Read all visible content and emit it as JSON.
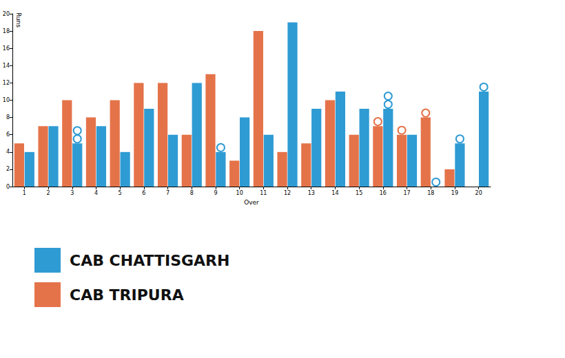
{
  "chart_data": {
    "type": "bar",
    "xlabel": "Over",
    "ylabel": "Runs",
    "categories": [
      "1",
      "2",
      "3",
      "4",
      "5",
      "6",
      "7",
      "8",
      "9",
      "10",
      "11",
      "12",
      "13",
      "14",
      "15",
      "16",
      "17",
      "18",
      "19",
      "20"
    ],
    "series": [
      {
        "name": "CAB CHATTISGARH",
        "color": "#2f9bd3",
        "values": [
          4,
          7,
          5,
          7,
          4,
          9,
          6,
          12,
          4,
          8,
          6,
          19,
          9,
          11,
          9,
          9,
          6,
          0,
          5,
          11
        ],
        "wickets": [
          0,
          0,
          2,
          0,
          0,
          0,
          0,
          0,
          1,
          0,
          0,
          0,
          0,
          0,
          0,
          2,
          0,
          1,
          1,
          1
        ]
      },
      {
        "name": "CAB TRIPURA",
        "color": "#e5734a",
        "values": [
          5,
          7,
          10,
          8,
          10,
          12,
          12,
          6,
          13,
          3,
          18,
          4,
          5,
          10,
          6,
          7,
          6,
          8,
          2,
          null
        ],
        "wickets": [
          0,
          0,
          0,
          0,
          0,
          0,
          0,
          0,
          0,
          0,
          0,
          0,
          0,
          0,
          0,
          1,
          1,
          1,
          0,
          0
        ]
      }
    ],
    "ylim": [
      0,
      20
    ],
    "yticks": [
      0,
      2,
      4,
      6,
      8,
      10,
      12,
      14,
      16,
      18,
      20
    ],
    "grid": false,
    "legend": "bottom-left",
    "marker": "circle"
  }
}
